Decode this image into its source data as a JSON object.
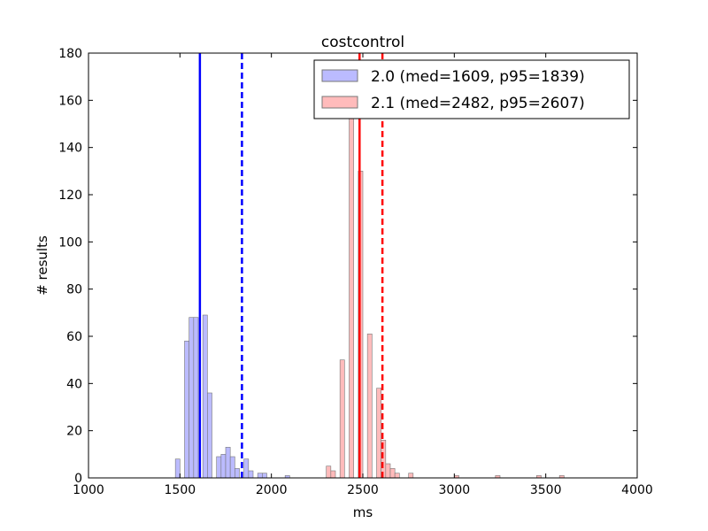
{
  "chart_data": {
    "type": "histogram",
    "title": "costcontrol",
    "xlabel": "ms",
    "ylabel": "# results",
    "xlim": [
      1000,
      4000
    ],
    "ylim": [
      0,
      180
    ],
    "xticks": [
      1000,
      1500,
      2000,
      2500,
      3000,
      3500,
      4000
    ],
    "yticks": [
      0,
      20,
      40,
      60,
      80,
      100,
      120,
      140,
      160,
      180
    ],
    "bin_width": 25,
    "grid": false,
    "legend_position": "top-right",
    "series": [
      {
        "name": "2.0 (med=1609, p95=1839)",
        "color": "#0000ff",
        "fill": "#bbbbff",
        "median": 1609,
        "p95": 1839,
        "bins": [
          {
            "x": 1475,
            "count": 8
          },
          {
            "x": 1525,
            "count": 58
          },
          {
            "x": 1550,
            "count": 68
          },
          {
            "x": 1575,
            "count": 68
          },
          {
            "x": 1625,
            "count": 69
          },
          {
            "x": 1650,
            "count": 36
          },
          {
            "x": 1700,
            "count": 9
          },
          {
            "x": 1725,
            "count": 10
          },
          {
            "x": 1750,
            "count": 13
          },
          {
            "x": 1775,
            "count": 9
          },
          {
            "x": 1800,
            "count": 4
          },
          {
            "x": 1850,
            "count": 8
          },
          {
            "x": 1875,
            "count": 3
          },
          {
            "x": 1925,
            "count": 2
          },
          {
            "x": 1950,
            "count": 2
          },
          {
            "x": 2075,
            "count": 1
          }
        ]
      },
      {
        "name": "2.1 (med=2482, p95=2607)",
        "color": "#ff0000",
        "fill": "#ffbbbb",
        "median": 2482,
        "p95": 2607,
        "bins": [
          {
            "x": 2300,
            "count": 5
          },
          {
            "x": 2325,
            "count": 3
          },
          {
            "x": 2375,
            "count": 50
          },
          {
            "x": 2425,
            "count": 155
          },
          {
            "x": 2475,
            "count": 130
          },
          {
            "x": 2525,
            "count": 61
          },
          {
            "x": 2575,
            "count": 38
          },
          {
            "x": 2600,
            "count": 16
          },
          {
            "x": 2625,
            "count": 6
          },
          {
            "x": 2650,
            "count": 4
          },
          {
            "x": 2675,
            "count": 2
          },
          {
            "x": 2750,
            "count": 2
          },
          {
            "x": 3000,
            "count": 1
          },
          {
            "x": 3225,
            "count": 1
          },
          {
            "x": 3450,
            "count": 1
          },
          {
            "x": 3575,
            "count": 1
          }
        ]
      }
    ]
  }
}
